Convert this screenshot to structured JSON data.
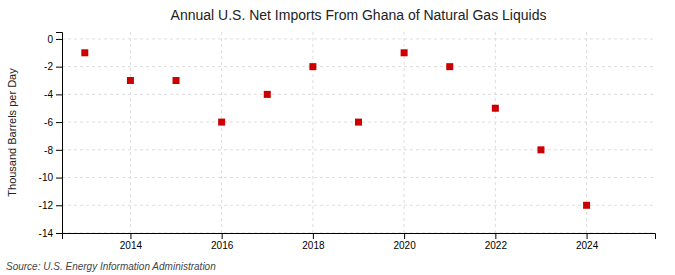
{
  "chart_data": {
    "type": "scatter",
    "title": "Annual U.S. Net Imports From Ghana of Natural Gas Liquids",
    "ylabel": "Thousand Barrels per Day",
    "source": "Source: U.S. Energy Information Administration",
    "x": [
      2013,
      2014,
      2015,
      2016,
      2017,
      2018,
      2019,
      2020,
      2021,
      2022,
      2023,
      2024
    ],
    "values": [
      -1.0,
      -3.0,
      -3.0,
      -6.0,
      -4.0,
      -2.0,
      -6.0,
      -1.0,
      -2.0,
      -5.0,
      -8.0,
      -12.0
    ],
    "color": "#cc0000",
    "marker": "square",
    "xlim": [
      2012.5,
      2025.5
    ],
    "xticks": [
      2014,
      2016,
      2018,
      2020,
      2022,
      2024
    ],
    "ylim": [
      -14,
      0.5
    ],
    "yticks": [
      0,
      -2,
      -4,
      -6,
      -8,
      -10,
      -12,
      -14
    ],
    "grid": true
  }
}
